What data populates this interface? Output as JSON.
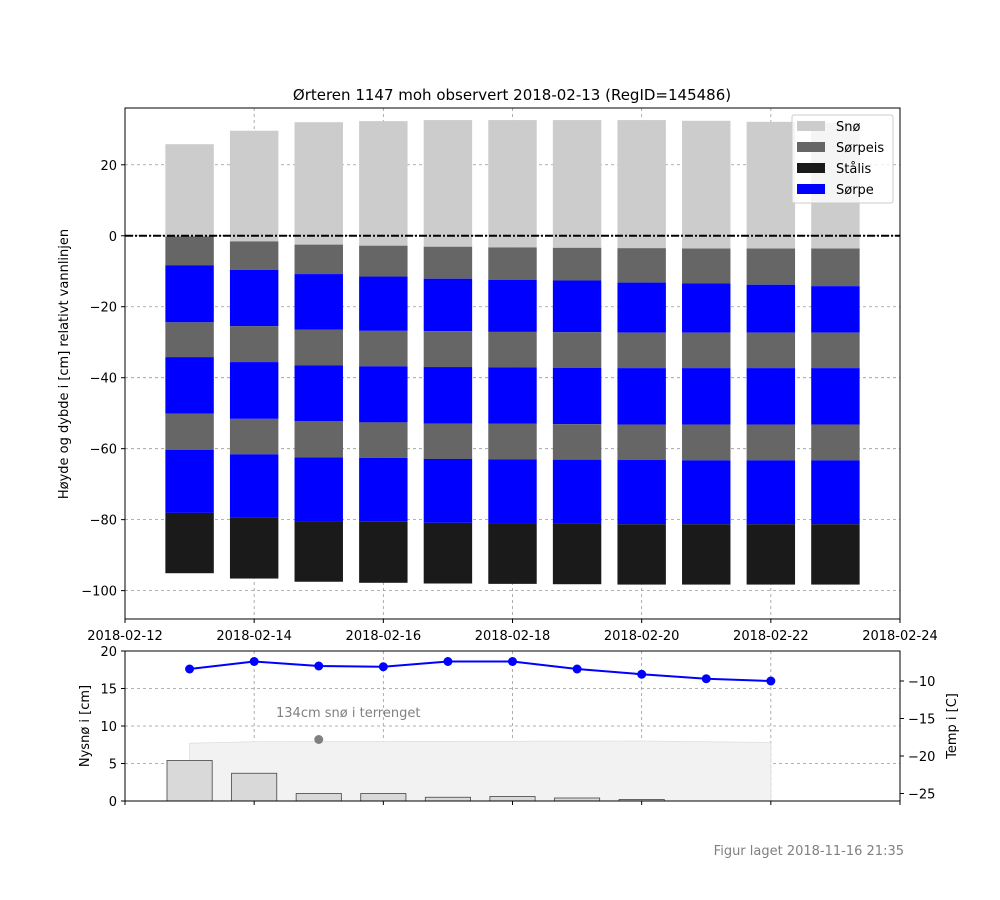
{
  "title": "Ørteren 1147 moh observert 2018-02-13 (RegID=145486)",
  "footer": "Figur laget 2018-11-16 21:35",
  "chart_data": [
    {
      "type": "bar",
      "stacked": true,
      "title": "Ørteren 1147 moh observert 2018-02-13 (RegID=145486)",
      "ylabel": "Høyde og dybde i [cm] relativt vannlinjen",
      "xlim": [
        "2018-02-12",
        "2018-02-24"
      ],
      "ylim": [
        -108,
        36
      ],
      "x_ticks": [
        "2018-02-12",
        "2018-02-14",
        "2018-02-16",
        "2018-02-18",
        "2018-02-20",
        "2018-02-22",
        "2018-02-24"
      ],
      "y_ticks": [
        20,
        0,
        -20,
        -40,
        -60,
        -80,
        -100
      ],
      "grid": true,
      "legend_position": "top-right",
      "legend": [
        "Snø",
        "Sørpeis",
        "Stålis",
        "Sørpe"
      ],
      "colors": {
        "Snø": "#cccccc",
        "Sørpeis": "#666666",
        "Stålis": "#1a1a1a",
        "Sørpe": "#0000ff"
      },
      "water_line": 0,
      "columns": [
        {
          "date": "2018-02-13",
          "layers": [
            {
              "type": "Snø",
              "top": 25.8,
              "bottom": -0.2
            },
            {
              "type": "Sørpeis",
              "top": -0.2,
              "bottom": -8.3
            },
            {
              "type": "Sørpe",
              "top": -8.3,
              "bottom": -24.4
            },
            {
              "type": "Sørpeis",
              "top": -24.4,
              "bottom": -34.2
            },
            {
              "type": "Sørpe",
              "top": -34.2,
              "bottom": -50.1
            },
            {
              "type": "Sørpeis",
              "top": -50.1,
              "bottom": -60.3
            },
            {
              "type": "Sørpe",
              "top": -60.3,
              "bottom": -78.1
            },
            {
              "type": "Stålis",
              "top": -78.1,
              "bottom": -95.1
            }
          ]
        },
        {
          "date": "2018-02-14",
          "layers": [
            {
              "type": "Snø",
              "top": 29.6,
              "bottom": -1.6
            },
            {
              "type": "Sørpeis",
              "top": -1.6,
              "bottom": -9.6
            },
            {
              "type": "Sørpe",
              "top": -9.6,
              "bottom": -25.5
            },
            {
              "type": "Sørpeis",
              "top": -25.5,
              "bottom": -35.6
            },
            {
              "type": "Sørpe",
              "top": -35.6,
              "bottom": -51.6
            },
            {
              "type": "Sørpeis",
              "top": -51.6,
              "bottom": -61.6
            },
            {
              "type": "Sørpe",
              "top": -61.6,
              "bottom": -79.5
            },
            {
              "type": "Stålis",
              "top": -79.5,
              "bottom": -96.6
            }
          ]
        },
        {
          "date": "2018-02-15",
          "layers": [
            {
              "type": "Snø",
              "top": 32.0,
              "bottom": -2.5
            },
            {
              "type": "Sørpeis",
              "top": -2.5,
              "bottom": -10.8
            },
            {
              "type": "Sørpe",
              "top": -10.8,
              "bottom": -26.5
            },
            {
              "type": "Sørpeis",
              "top": -26.5,
              "bottom": -36.5
            },
            {
              "type": "Sørpe",
              "top": -36.5,
              "bottom": -52.3
            },
            {
              "type": "Sørpeis",
              "top": -52.3,
              "bottom": -62.5
            },
            {
              "type": "Sørpe",
              "top": -62.5,
              "bottom": -80.5
            },
            {
              "type": "Stålis",
              "top": -80.5,
              "bottom": -97.5
            }
          ]
        },
        {
          "date": "2018-02-16",
          "layers": [
            {
              "type": "Snø",
              "top": 32.3,
              "bottom": -2.8
            },
            {
              "type": "Sørpeis",
              "top": -2.8,
              "bottom": -11.5
            },
            {
              "type": "Sørpe",
              "top": -11.5,
              "bottom": -26.8
            },
            {
              "type": "Sørpeis",
              "top": -26.8,
              "bottom": -36.8
            },
            {
              "type": "Sørpe",
              "top": -36.8,
              "bottom": -52.6
            },
            {
              "type": "Sørpeis",
              "top": -52.6,
              "bottom": -62.6
            },
            {
              "type": "Sørpe",
              "top": -62.6,
              "bottom": -80.6
            },
            {
              "type": "Stålis",
              "top": -80.6,
              "bottom": -97.8
            }
          ]
        },
        {
          "date": "2018-02-17",
          "layers": [
            {
              "type": "Snø",
              "top": 32.6,
              "bottom": -3.1
            },
            {
              "type": "Sørpeis",
              "top": -3.1,
              "bottom": -12.1
            },
            {
              "type": "Sørpe",
              "top": -12.1,
              "bottom": -26.9
            },
            {
              "type": "Sørpeis",
              "top": -26.9,
              "bottom": -37.0
            },
            {
              "type": "Sørpe",
              "top": -37.0,
              "bottom": -52.9
            },
            {
              "type": "Sørpeis",
              "top": -52.9,
              "bottom": -62.9
            },
            {
              "type": "Sørpe",
              "top": -62.9,
              "bottom": -80.9
            },
            {
              "type": "Stålis",
              "top": -80.9,
              "bottom": -98.0
            }
          ]
        },
        {
          "date": "2018-02-18",
          "layers": [
            {
              "type": "Snø",
              "top": 32.6,
              "bottom": -3.3
            },
            {
              "type": "Sørpeis",
              "top": -3.3,
              "bottom": -12.4
            },
            {
              "type": "Sørpe",
              "top": -12.4,
              "bottom": -27.1
            },
            {
              "type": "Sørpeis",
              "top": -27.1,
              "bottom": -37.1
            },
            {
              "type": "Sørpe",
              "top": -37.1,
              "bottom": -53.0
            },
            {
              "type": "Sørpeis",
              "top": -53.0,
              "bottom": -63.0
            },
            {
              "type": "Sørpe",
              "top": -63.0,
              "bottom": -81.1
            },
            {
              "type": "Stålis",
              "top": -81.1,
              "bottom": -98.1
            }
          ]
        },
        {
          "date": "2018-02-19",
          "layers": [
            {
              "type": "Snø",
              "top": 32.6,
              "bottom": -3.4
            },
            {
              "type": "Sørpeis",
              "top": -3.4,
              "bottom": -12.6
            },
            {
              "type": "Sørpe",
              "top": -12.6,
              "bottom": -27.2
            },
            {
              "type": "Sørpeis",
              "top": -27.2,
              "bottom": -37.2
            },
            {
              "type": "Sørpe",
              "top": -37.2,
              "bottom": -53.1
            },
            {
              "type": "Sørpeis",
              "top": -53.1,
              "bottom": -63.1
            },
            {
              "type": "Sørpe",
              "top": -63.1,
              "bottom": -81.2
            },
            {
              "type": "Stålis",
              "top": -81.2,
              "bottom": -98.2
            }
          ]
        },
        {
          "date": "2018-02-20",
          "layers": [
            {
              "type": "Snø",
              "top": 32.6,
              "bottom": -3.5
            },
            {
              "type": "Sørpeis",
              "top": -3.5,
              "bottom": -13.2
            },
            {
              "type": "Sørpe",
              "top": -13.2,
              "bottom": -27.3
            },
            {
              "type": "Sørpeis",
              "top": -27.3,
              "bottom": -37.3
            },
            {
              "type": "Sørpe",
              "top": -37.3,
              "bottom": -53.2
            },
            {
              "type": "Sørpeis",
              "top": -53.2,
              "bottom": -63.2
            },
            {
              "type": "Sørpe",
              "top": -63.2,
              "bottom": -81.3
            },
            {
              "type": "Stålis",
              "top": -81.3,
              "bottom": -98.3
            }
          ]
        },
        {
          "date": "2018-02-21",
          "layers": [
            {
              "type": "Snø",
              "top": 32.4,
              "bottom": -3.6
            },
            {
              "type": "Sørpeis",
              "top": -3.6,
              "bottom": -13.4
            },
            {
              "type": "Sørpe",
              "top": -13.4,
              "bottom": -27.3
            },
            {
              "type": "Sørpeis",
              "top": -27.3,
              "bottom": -37.3
            },
            {
              "type": "Sørpe",
              "top": -37.3,
              "bottom": -53.2
            },
            {
              "type": "Sørpeis",
              "top": -53.2,
              "bottom": -63.3
            },
            {
              "type": "Sørpe",
              "top": -63.3,
              "bottom": -81.3
            },
            {
              "type": "Stålis",
              "top": -81.3,
              "bottom": -98.3
            }
          ]
        },
        {
          "date": "2018-02-22",
          "layers": [
            {
              "type": "Snø",
              "top": 32.1,
              "bottom": -3.6
            },
            {
              "type": "Sørpeis",
              "top": -3.6,
              "bottom": -13.8
            },
            {
              "type": "Sørpe",
              "top": -13.8,
              "bottom": -27.3
            },
            {
              "type": "Sørpeis",
              "top": -27.3,
              "bottom": -37.3
            },
            {
              "type": "Sørpe",
              "top": -37.3,
              "bottom": -53.2
            },
            {
              "type": "Sørpeis",
              "top": -53.2,
              "bottom": -63.3
            },
            {
              "type": "Sørpe",
              "top": -63.3,
              "bottom": -81.3
            },
            {
              "type": "Stålis",
              "top": -81.3,
              "bottom": -98.3
            }
          ]
        },
        {
          "date": "2018-02-23",
          "layers": [
            {
              "type": "Snø",
              "top": 31.8,
              "bottom": -3.6
            },
            {
              "type": "Sørpeis",
              "top": -3.6,
              "bottom": -14.2
            },
            {
              "type": "Sørpe",
              "top": -14.2,
              "bottom": -27.3
            },
            {
              "type": "Sørpeis",
              "top": -27.3,
              "bottom": -37.3
            },
            {
              "type": "Sørpe",
              "top": -37.3,
              "bottom": -53.2
            },
            {
              "type": "Sørpeis",
              "top": -53.2,
              "bottom": -63.3
            },
            {
              "type": "Sørpe",
              "top": -63.3,
              "bottom": -81.3
            },
            {
              "type": "Stålis",
              "top": -81.3,
              "bottom": -98.3
            }
          ]
        }
      ]
    },
    {
      "type": "bar",
      "ylabel": "Nysnø i [cm]",
      "ylim": [
        0,
        20
      ],
      "y_ticks": [
        0,
        5,
        10,
        15,
        20
      ],
      "xlim": [
        "2018-02-12",
        "2018-02-24"
      ],
      "grid": true,
      "annotation": {
        "text": "134cm snø i terrenget",
        "marker_date": "2018-02-15",
        "marker_value": 8.2
      },
      "terrain_snow_area": {
        "dates": [
          "2018-02-13",
          "2018-02-14",
          "2018-02-20",
          "2018-02-22"
        ],
        "values": [
          7.7,
          7.9,
          8.0,
          7.8
        ]
      },
      "categories": [
        "2018-02-13",
        "2018-02-14",
        "2018-02-15",
        "2018-02-16",
        "2018-02-17",
        "2018-02-18",
        "2018-02-19",
        "2018-02-20"
      ],
      "values": [
        5.4,
        3.7,
        1.0,
        1.0,
        0.5,
        0.6,
        0.4,
        0.2
      ],
      "colors": {
        "new_snow_bar": "#d9d9d9",
        "terrain_snow_fill": "#f2f2f2",
        "marker": "#808080"
      }
    },
    {
      "type": "line",
      "ylabel": "Temp i [C]",
      "ylim": [
        -26,
        -6
      ],
      "y_ticks": [
        -10,
        -15,
        -20,
        -25
      ],
      "axis_side": "right",
      "x": [
        "2018-02-13",
        "2018-02-14",
        "2018-02-15",
        "2018-02-16",
        "2018-02-17",
        "2018-02-18",
        "2018-02-19",
        "2018-02-20",
        "2018-02-21",
        "2018-02-22"
      ],
      "values": [
        -8.4,
        -7.4,
        -8.0,
        -8.1,
        -7.4,
        -7.4,
        -8.4,
        -9.1,
        -9.7,
        -10.0
      ],
      "colors": {
        "line": "#0000ff"
      }
    }
  ]
}
